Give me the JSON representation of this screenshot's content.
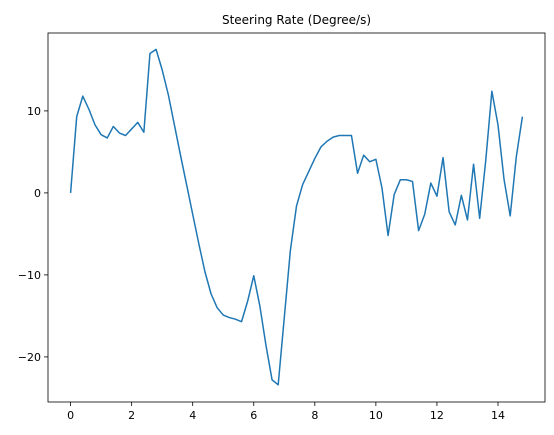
{
  "chart_data": {
    "type": "line",
    "title": "Steering Rate (Degree/s)",
    "x": [
      0,
      0.2,
      0.4,
      0.6,
      0.8,
      1.0,
      1.2,
      1.4,
      1.6,
      1.8,
      2.0,
      2.2,
      2.4,
      2.6,
      2.8,
      3.0,
      3.2,
      3.4,
      3.6,
      3.8,
      4.0,
      4.2,
      4.4,
      4.6,
      4.8,
      5.0,
      5.2,
      5.4,
      5.6,
      5.8,
      6.0,
      6.2,
      6.4,
      6.6,
      6.8,
      7.0,
      7.2,
      7.4,
      7.6,
      7.8,
      8.0,
      8.2,
      8.4,
      8.6,
      8.8,
      9.0,
      9.2,
      9.4,
      9.6,
      9.8,
      10.0,
      10.2,
      10.4,
      10.6,
      10.8,
      11.0,
      11.2,
      11.4,
      11.6,
      11.8,
      12.0,
      12.2,
      12.4,
      12.6,
      12.8,
      13.0,
      13.2,
      13.4,
      13.6,
      13.8,
      14.0,
      14.2,
      14.4,
      14.6,
      14.8
    ],
    "series": [
      {
        "color": "#1f77b4",
        "values": [
          0,
          9.3,
          11.8,
          10.2,
          8.3,
          7.1,
          6.7,
          8.1,
          7.3,
          7.0,
          7.8,
          8.6,
          7.4,
          17.0,
          17.5,
          15.0,
          12.0,
          8.3,
          4.6,
          1.0,
          -2.6,
          -6.2,
          -9.6,
          -12.3,
          -14.0,
          -14.9,
          -15.2,
          -15.4,
          -15.7,
          -13.2,
          -10.1,
          -13.8,
          -18.6,
          -22.8,
          -23.4,
          -15.2,
          -7.0,
          -1.6,
          1.0,
          2.6,
          4.2,
          5.6,
          6.3,
          6.8,
          7.0,
          7.0,
          7.0,
          2.4,
          4.6,
          3.8,
          4.1,
          0.6,
          -5.2,
          -0.2,
          1.6,
          1.6,
          1.4,
          -4.6,
          -2.6,
          1.2,
          -0.4,
          4.3,
          -2.3,
          -3.9,
          -0.3,
          -3.3,
          3.5,
          -3.1,
          4.0,
          12.4,
          8.3,
          1.6,
          -2.8,
          4.4,
          9.3
        ]
      }
    ],
    "xlim": [
      -0.74,
      15.54
    ],
    "ylim": [
      -25.5,
      19.5
    ],
    "xticks": [
      0,
      2,
      4,
      6,
      8,
      10,
      12,
      14
    ],
    "yticks": [
      {
        "value": -20,
        "label": "−20"
      },
      {
        "value": -10,
        "label": "−10"
      },
      0,
      10
    ]
  }
}
